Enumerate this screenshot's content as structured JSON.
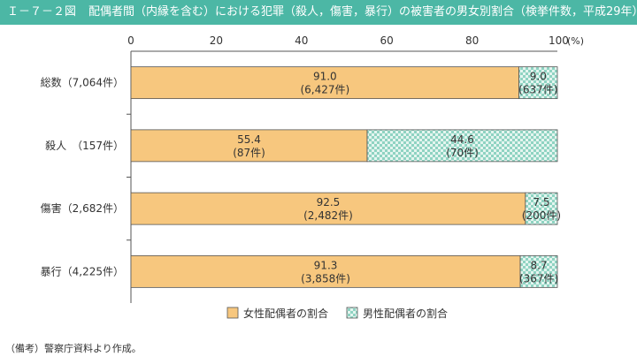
{
  "header": {
    "figure_number": "Ｉ－７－２図",
    "title": "配偶者間（内縁を含む）における犯罪（殺人，傷害，暴行）の被害者の男女別割合（検挙件数，平成29年）"
  },
  "note": "（備考）警察庁資料より作成。",
  "colors": {
    "female": "#f7c77e",
    "male_a": "#8fd3c2",
    "male_b": "#e4f5ef",
    "title_bg": "#4cb7a5"
  },
  "chart_data": {
    "type": "bar",
    "orientation": "horizontal",
    "stacked": true,
    "categories": [
      "総数（7,064件）",
      "殺人　（157件）",
      "傷害（2,682件）",
      "暴行（4,225件）"
    ],
    "series": [
      {
        "name": "女性配偶者の割合",
        "values": [
          91.0,
          55.4,
          92.5,
          91.3
        ],
        "labels": [
          "91.0",
          "55.4",
          "92.5",
          "91.3"
        ],
        "counts": [
          "(6,427件)",
          "(87件)",
          "(2,482件)",
          "(3,858件)"
        ]
      },
      {
        "name": "男性配偶者の割合",
        "values": [
          9.0,
          44.6,
          7.5,
          8.7
        ],
        "labels": [
          "9.0",
          "44.6",
          "7.5",
          "8.7"
        ],
        "counts": [
          "(637件)",
          "(70件)",
          "(200件)",
          "(367件)"
        ]
      }
    ],
    "xlim": [
      0,
      100
    ],
    "xticks": [
      "0",
      "20",
      "40",
      "60",
      "80",
      "100"
    ],
    "xtick_values": [
      0,
      20,
      40,
      60,
      80,
      100
    ],
    "unit": "(%)",
    "legend_position": "bottom"
  }
}
